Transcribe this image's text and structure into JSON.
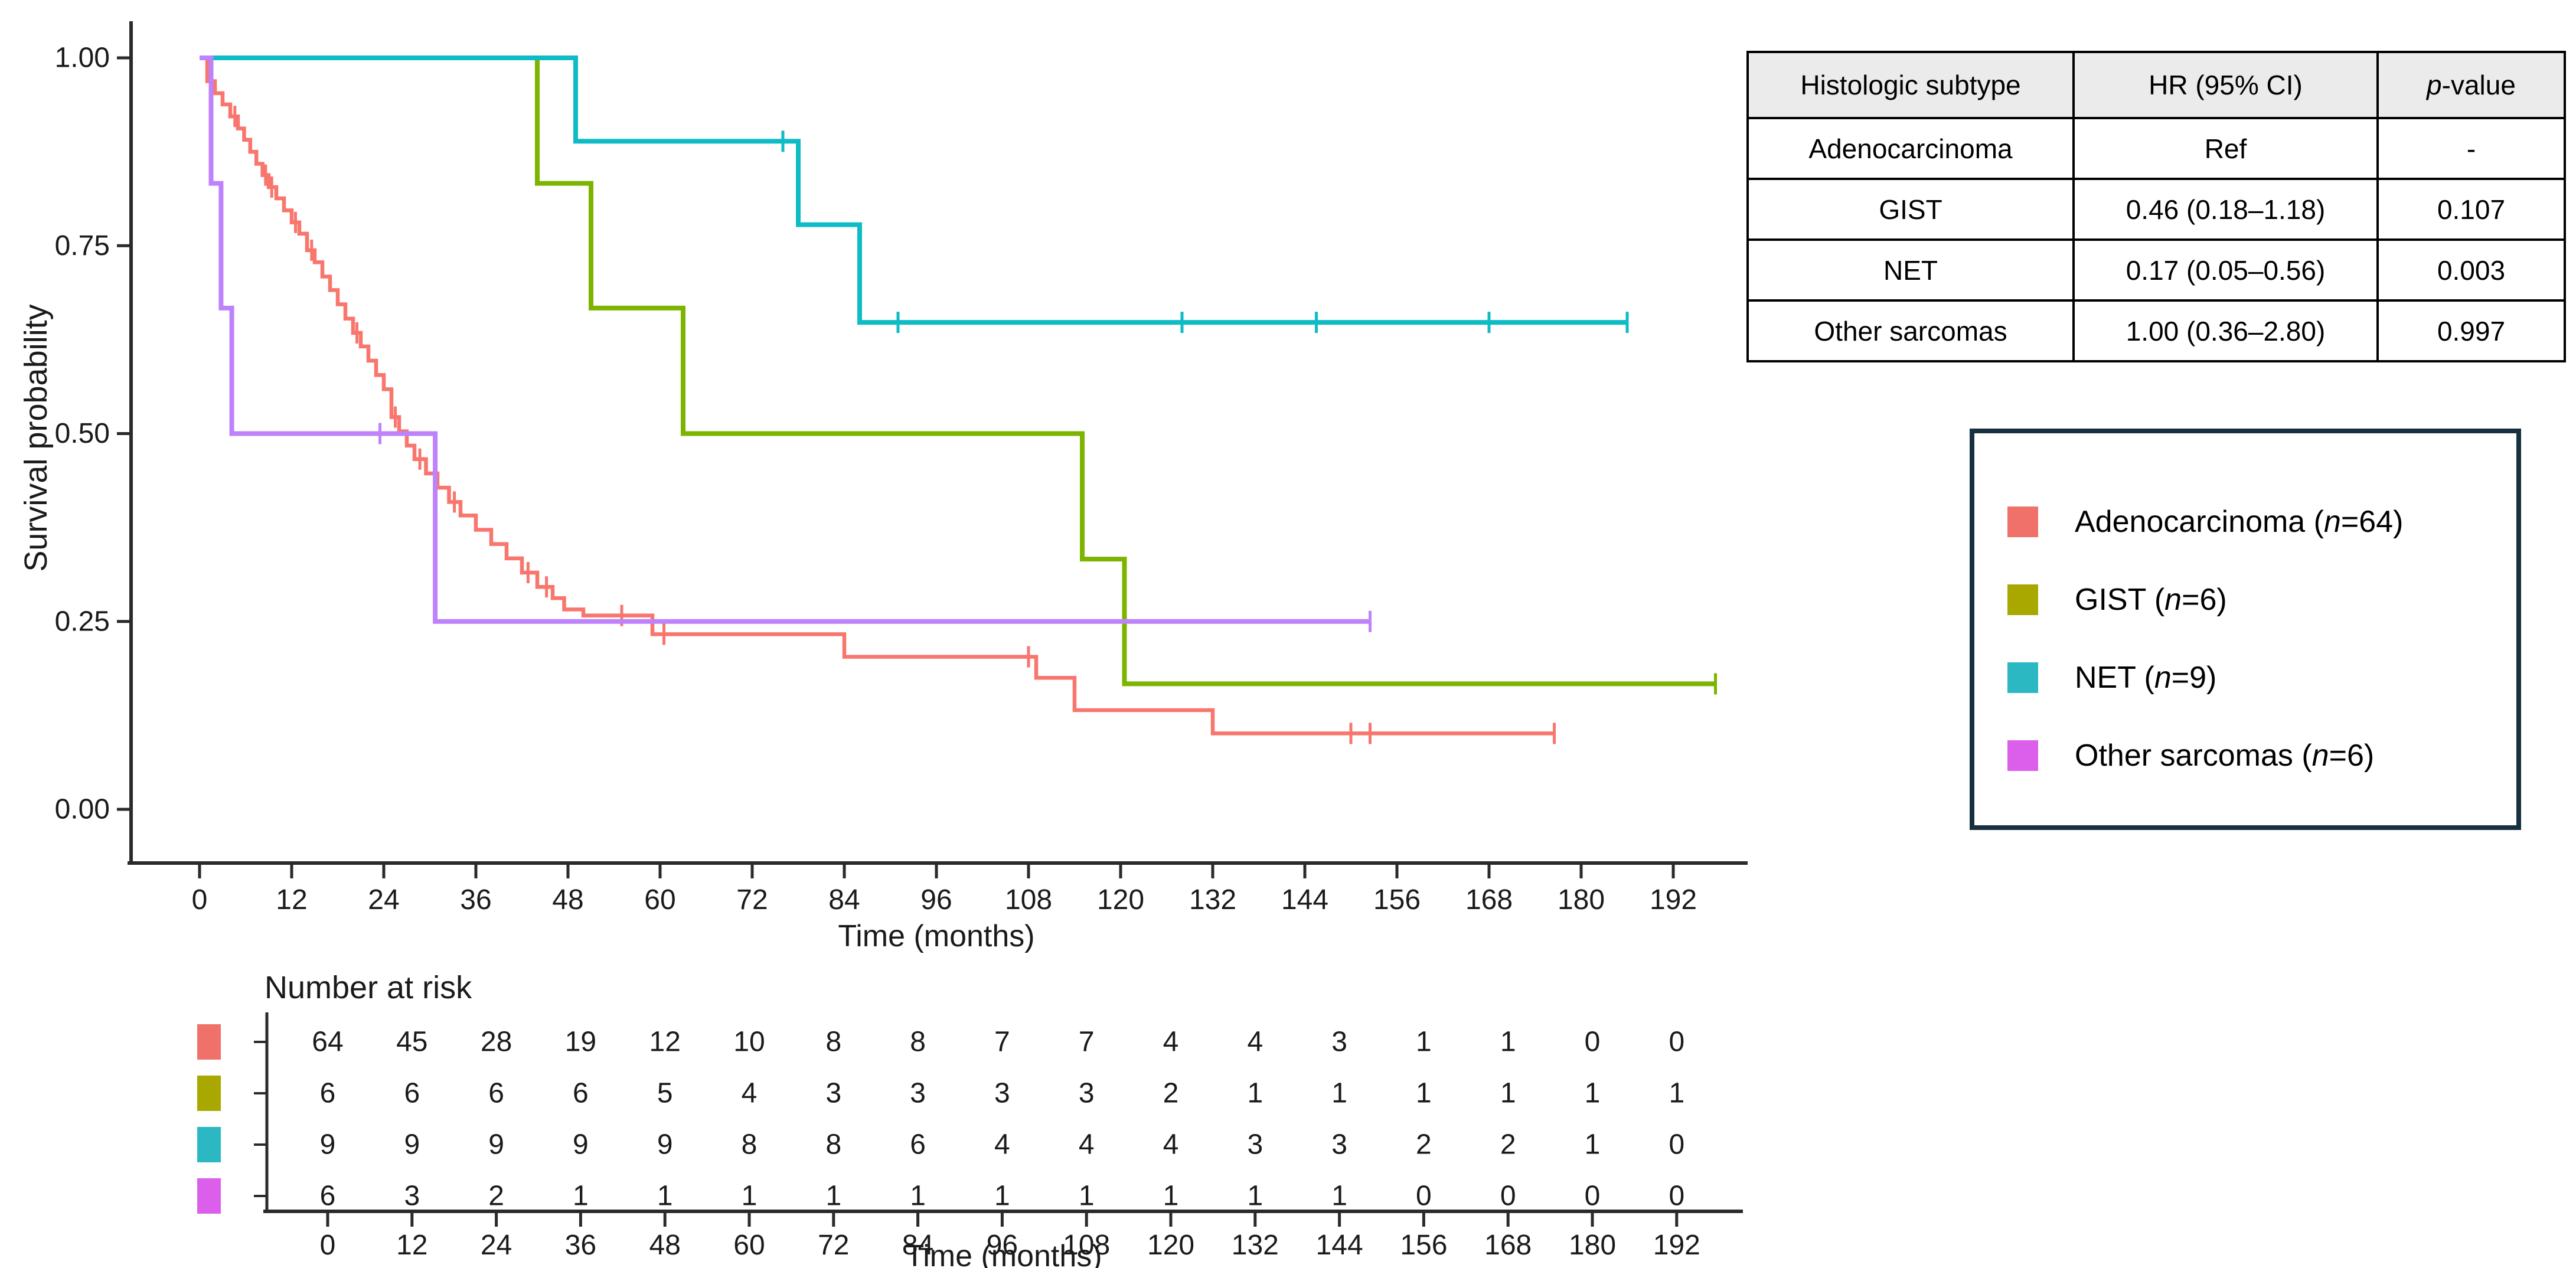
{
  "km_plot": {
    "ylabel": "Survival probability",
    "xlabel": "Time (months)",
    "y_axis_ticks": [
      {
        "value": 1.0,
        "label": "1.00"
      },
      {
        "value": 0.75,
        "label": "0.75"
      },
      {
        "value": 0.5,
        "label": "0.50"
      },
      {
        "value": 0.25,
        "label": "0.25"
      },
      {
        "value": 0.0,
        "label": "0.00"
      }
    ],
    "x_axis_ticks": [
      0,
      12,
      24,
      36,
      48,
      60,
      72,
      84,
      96,
      108,
      120,
      132,
      144,
      156,
      168,
      180,
      192
    ]
  },
  "chart_data": {
    "type": "line",
    "subtype": "kaplan-meier-step",
    "title": "",
    "xlabel": "Time (months)",
    "ylabel": "Survival probability",
    "xlim": [
      0,
      198
    ],
    "ylim": [
      0.0,
      1.0
    ],
    "x_ticks": [
      0,
      12,
      24,
      36,
      48,
      60,
      72,
      84,
      96,
      108,
      120,
      132,
      144,
      156,
      168,
      180,
      192
    ],
    "y_ticks": [
      0.0,
      0.25,
      0.5,
      0.75,
      1.0
    ],
    "grid": false,
    "legend_position": "right-box",
    "series": [
      {
        "name": "Adenocarcinoma",
        "n": 64,
        "curve_color": "#F8766D",
        "swatch_color": "#F0716A",
        "steps": [
          [
            1,
            0.969
          ],
          [
            2,
            0.953
          ],
          [
            3,
            0.938
          ],
          [
            4,
            0.922
          ],
          [
            5,
            0.906
          ],
          [
            5.8,
            0.891
          ],
          [
            6.6,
            0.875
          ],
          [
            7.4,
            0.859
          ],
          [
            8.2,
            0.844
          ],
          [
            9,
            0.828
          ],
          [
            10,
            0.813
          ],
          [
            11,
            0.797
          ],
          [
            12,
            0.781
          ],
          [
            13,
            0.766
          ],
          [
            14,
            0.744
          ],
          [
            15,
            0.728
          ],
          [
            16,
            0.709
          ],
          [
            17,
            0.691
          ],
          [
            18,
            0.672
          ],
          [
            19,
            0.653
          ],
          [
            20,
            0.634
          ],
          [
            21,
            0.616
          ],
          [
            22,
            0.597
          ],
          [
            23,
            0.578
          ],
          [
            24,
            0.559
          ],
          [
            25,
            0.522
          ],
          [
            26,
            0.503
          ],
          [
            27,
            0.484
          ],
          [
            28,
            0.466
          ],
          [
            29.5,
            0.447
          ],
          [
            31,
            0.428
          ],
          [
            32.5,
            0.409
          ],
          [
            34,
            0.391
          ],
          [
            36,
            0.372
          ],
          [
            38,
            0.353
          ],
          [
            40,
            0.334
          ],
          [
            42,
            0.315
          ],
          [
            44,
            0.296
          ],
          [
            46,
            0.281
          ],
          [
            47.5,
            0.266
          ],
          [
            50,
            0.258
          ],
          [
            59,
            0.233
          ],
          [
            84,
            0.203
          ],
          [
            109,
            0.175
          ],
          [
            114,
            0.132
          ],
          [
            132,
            0.101
          ]
        ],
        "end_time": 176.5,
        "censors": [
          [
            1.4,
            0.969
          ],
          [
            4.6,
            0.922
          ],
          [
            8.6,
            0.844
          ],
          [
            9.4,
            0.828
          ],
          [
            12.5,
            0.781
          ],
          [
            14.6,
            0.744
          ],
          [
            20.5,
            0.634
          ],
          [
            25.5,
            0.522
          ],
          [
            28.7,
            0.466
          ],
          [
            33.2,
            0.409
          ],
          [
            42.8,
            0.315
          ],
          [
            45.2,
            0.296
          ],
          [
            55,
            0.258
          ],
          [
            60.5,
            0.233
          ],
          [
            108,
            0.203
          ],
          [
            150,
            0.101
          ],
          [
            152.5,
            0.101
          ],
          [
            176.5,
            0.101
          ]
        ],
        "at_risk": [
          64,
          45,
          28,
          19,
          12,
          10,
          8,
          8,
          7,
          7,
          4,
          4,
          3,
          1,
          1,
          0,
          0
        ],
        "stroke_width": 6.5
      },
      {
        "name": "GIST",
        "n": 6,
        "curve_color": "#7CB400",
        "swatch_color": "#A8A800",
        "steps": [
          [
            44,
            0.833
          ],
          [
            51,
            0.667
          ],
          [
            63,
            0.5
          ],
          [
            115,
            0.333
          ],
          [
            120.5,
            0.167
          ]
        ],
        "end_time": 197.5,
        "censors": [
          [
            197.5,
            0.167
          ]
        ],
        "at_risk": [
          6,
          6,
          6,
          6,
          5,
          4,
          3,
          3,
          3,
          3,
          2,
          1,
          1,
          1,
          1,
          1,
          1
        ],
        "stroke_width": 8
      },
      {
        "name": "NET",
        "n": 9,
        "curve_color": "#0FBCC5",
        "swatch_color": "#2BB8C2",
        "steps": [
          [
            49,
            0.889
          ],
          [
            78,
            0.778
          ],
          [
            86,
            0.648
          ]
        ],
        "end_time": 186,
        "censors": [
          [
            76,
            0.889
          ],
          [
            91,
            0.648
          ],
          [
            128,
            0.648
          ],
          [
            145.5,
            0.648
          ],
          [
            168,
            0.648
          ],
          [
            186,
            0.648
          ]
        ],
        "at_risk": [
          9,
          9,
          9,
          9,
          9,
          8,
          8,
          6,
          4,
          4,
          4,
          3,
          3,
          2,
          2,
          1,
          0
        ],
        "stroke_width": 8
      },
      {
        "name": "Other sarcomas",
        "n": 6,
        "curve_color": "#BE82FB",
        "swatch_color": "#DC5FEC",
        "steps": [
          [
            1.5,
            0.833
          ],
          [
            2.8,
            0.667
          ],
          [
            4.2,
            0.5
          ],
          [
            30.7,
            0.25
          ]
        ],
        "end_time": 152.5,
        "censors": [
          [
            23.5,
            0.5
          ],
          [
            152.5,
            0.25
          ]
        ],
        "at_risk": [
          6,
          3,
          2,
          1,
          1,
          1,
          1,
          1,
          1,
          1,
          1,
          1,
          1,
          0,
          0,
          0,
          0
        ],
        "stroke_width": 8
      }
    ]
  },
  "hr_table": {
    "headers": {
      "col1": "Histologic subtype",
      "col2": "HR (95% CI)",
      "col3_italic": "p",
      "col3_rest": "-value"
    },
    "rows": [
      {
        "subtype": "Adenocarcinoma",
        "hr": "Ref",
        "p": "-"
      },
      {
        "subtype": "GIST",
        "hr": "0.46 (0.18–1.18)",
        "p": "0.107"
      },
      {
        "subtype": "NET",
        "hr": "0.17 (0.05–0.56)",
        "p": "0.003"
      },
      {
        "subtype": "Other sarcomas",
        "hr": "1.00 (0.36–2.80)",
        "p": "0.997"
      }
    ]
  },
  "legend": {
    "items": [
      {
        "label": "Adenocarcinoma",
        "n": "64"
      },
      {
        "label": "GIST",
        "n": "6"
      },
      {
        "label": "NET",
        "n": "9"
      },
      {
        "label": "Other sarcomas",
        "n": "6"
      }
    ]
  },
  "risk_table": {
    "title": "Number at risk",
    "xlabel": "Time (months)",
    "x_ticks": [
      0,
      12,
      24,
      36,
      48,
      60,
      72,
      84,
      96,
      108,
      120,
      132,
      144,
      156,
      168,
      180,
      192
    ]
  },
  "colors": {
    "axis": "#2a2a2a",
    "text": "#1a1a1a",
    "legend_border": "#16303F",
    "table_border": "#000000",
    "table_header_bg": "#EBEBEB",
    "background": "#FFFFFF"
  }
}
